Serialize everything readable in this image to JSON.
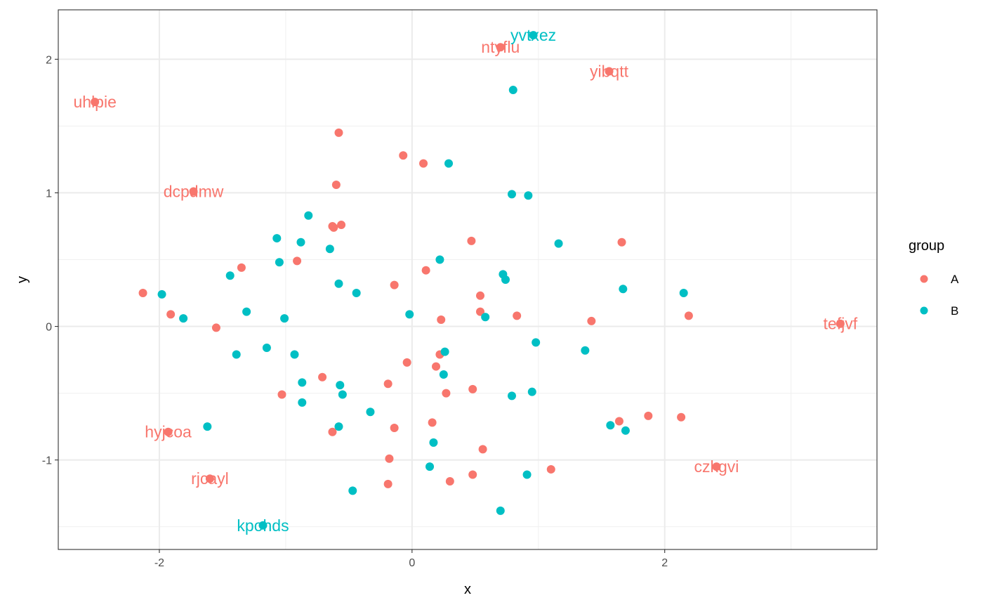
{
  "chart_data": {
    "type": "scatter",
    "title": "",
    "xlabel": "x",
    "ylabel": "y",
    "xlim": [
      -2.8,
      3.68
    ],
    "ylim": [
      -1.67,
      2.37
    ],
    "xticks": [
      -2,
      0,
      2
    ],
    "yticks": [
      -1,
      0,
      1,
      2
    ],
    "xtick_labels": [
      "-2",
      "0",
      "2"
    ],
    "ytick_labels": [
      "-1",
      "0",
      "1",
      "2"
    ],
    "grid": true,
    "legend": {
      "title": "group",
      "position": "right",
      "entries": [
        "A",
        "B"
      ]
    },
    "colors": {
      "A": "#F8766D",
      "B": "#00BFC4"
    },
    "series": [
      {
        "name": "A",
        "points": [
          [
            -2.51,
            1.68,
            "uhlpie"
          ],
          [
            0.7,
            2.09,
            "ntyflu"
          ],
          [
            1.56,
            1.91,
            "yibqtt"
          ],
          [
            -0.58,
            1.45
          ],
          [
            -0.07,
            1.28
          ],
          [
            0.09,
            1.22
          ],
          [
            -0.6,
            1.06
          ],
          [
            -1.73,
            1.01,
            "dcpdmw"
          ],
          [
            -0.63,
            0.75
          ],
          [
            -0.56,
            0.76
          ],
          [
            -0.62,
            0.74
          ],
          [
            0.47,
            0.64
          ],
          [
            1.66,
            0.63
          ],
          [
            -1.35,
            0.44
          ],
          [
            -0.91,
            0.49
          ],
          [
            0.11,
            0.42
          ],
          [
            -2.13,
            0.25
          ],
          [
            -0.14,
            0.31
          ],
          [
            0.54,
            0.23
          ],
          [
            -1.91,
            0.09
          ],
          [
            0.54,
            0.11
          ],
          [
            0.83,
            0.08
          ],
          [
            0.23,
            0.05
          ],
          [
            1.42,
            0.04
          ],
          [
            2.19,
            0.08
          ],
          [
            -1.55,
            -0.01
          ],
          [
            3.39,
            0.02,
            "tefjvf"
          ],
          [
            0.22,
            -0.21
          ],
          [
            -0.04,
            -0.27
          ],
          [
            0.19,
            -0.3
          ],
          [
            -0.71,
            -0.38
          ],
          [
            -0.19,
            -0.43
          ],
          [
            -1.03,
            -0.51
          ],
          [
            0.27,
            -0.5
          ],
          [
            0.48,
            -0.47
          ],
          [
            -1.93,
            -0.79,
            "hyjcoa"
          ],
          [
            -0.63,
            -0.79
          ],
          [
            -0.14,
            -0.76
          ],
          [
            0.16,
            -0.72
          ],
          [
            1.64,
            -0.71
          ],
          [
            1.87,
            -0.67
          ],
          [
            2.13,
            -0.68
          ],
          [
            0.56,
            -0.92
          ],
          [
            -0.18,
            -0.99
          ],
          [
            -1.6,
            -1.14,
            "rjcayl"
          ],
          [
            -0.19,
            -1.18
          ],
          [
            0.3,
            -1.16
          ],
          [
            0.48,
            -1.11
          ],
          [
            1.1,
            -1.07
          ],
          [
            2.41,
            -1.05,
            "czkgvi"
          ]
        ]
      },
      {
        "name": "B",
        "points": [
          [
            0.96,
            2.18,
            "yvtxez"
          ],
          [
            0.8,
            1.77
          ],
          [
            0.29,
            1.22
          ],
          [
            0.79,
            0.99
          ],
          [
            0.92,
            0.98
          ],
          [
            -0.82,
            0.83
          ],
          [
            -1.07,
            0.66
          ],
          [
            -0.88,
            0.63
          ],
          [
            -0.65,
            0.58
          ],
          [
            1.16,
            0.62
          ],
          [
            0.22,
            0.5
          ],
          [
            -1.05,
            0.48
          ],
          [
            0.72,
            0.39
          ],
          [
            0.74,
            0.35
          ],
          [
            -1.44,
            0.38
          ],
          [
            -0.58,
            0.32
          ],
          [
            -0.44,
            0.25
          ],
          [
            1.67,
            0.28
          ],
          [
            2.15,
            0.25
          ],
          [
            -1.98,
            0.24
          ],
          [
            -1.31,
            0.11
          ],
          [
            -0.02,
            0.09
          ],
          [
            -1.81,
            0.06
          ],
          [
            -1.01,
            0.06
          ],
          [
            0.58,
            0.07
          ],
          [
            0.98,
            -0.12
          ],
          [
            -1.15,
            -0.16
          ],
          [
            -1.39,
            -0.21
          ],
          [
            -0.93,
            -0.21
          ],
          [
            0.26,
            -0.19
          ],
          [
            1.37,
            -0.18
          ],
          [
            0.25,
            -0.36
          ],
          [
            -0.87,
            -0.42
          ],
          [
            -0.57,
            -0.44
          ],
          [
            -0.55,
            -0.51
          ],
          [
            -0.87,
            -0.57
          ],
          [
            0.95,
            -0.49
          ],
          [
            0.79,
            -0.52
          ],
          [
            -0.33,
            -0.64
          ],
          [
            -1.62,
            -0.75
          ],
          [
            -0.58,
            -0.75
          ],
          [
            1.57,
            -0.74
          ],
          [
            1.69,
            -0.78
          ],
          [
            0.17,
            -0.87
          ],
          [
            0.14,
            -1.05
          ],
          [
            0.91,
            -1.11
          ],
          [
            -0.47,
            -1.23
          ],
          [
            0.7,
            -1.38
          ],
          [
            -1.18,
            -1.49,
            "kpohds"
          ]
        ]
      }
    ]
  }
}
